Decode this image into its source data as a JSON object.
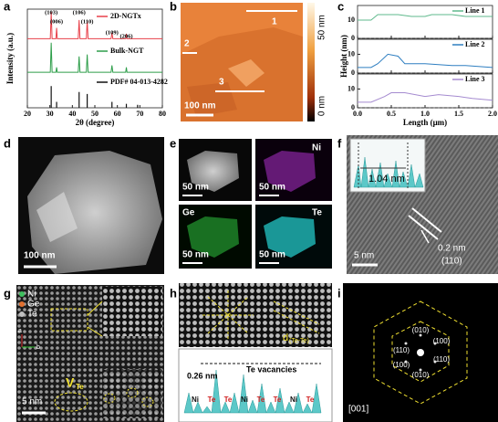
{
  "chart_data": [
    {
      "type": "line",
      "x_label": "2θ (degree)",
      "y_label": "Intensity (a.u.)",
      "xlim": [
        20,
        80
      ],
      "xticks": [
        20,
        30,
        40,
        50,
        60,
        70,
        80
      ],
      "ylim": [
        0,
        100
      ],
      "series": [
        {
          "name": "2D-NGTx",
          "color": "#e8414a",
          "x": [
            20,
            30.2,
            30.6,
            31,
            32.7,
            33,
            33.3,
            42.6,
            43,
            43.4,
            46.2,
            46.6,
            47,
            57.2,
            57.6,
            58,
            63.7,
            64,
            64.3,
            80
          ],
          "values": [
            70,
            70,
            97,
            70,
            70,
            81,
            70,
            70,
            89,
            70,
            70,
            88,
            70,
            70,
            76,
            70,
            70,
            75,
            70,
            70
          ]
        },
        {
          "name": "Bulk-NGT",
          "color": "#2e9e4a",
          "x": [
            20,
            30.2,
            30.6,
            31,
            32.7,
            33,
            33.3,
            42.6,
            43,
            43.4,
            46.2,
            46.6,
            47,
            57.2,
            57.6,
            58,
            63.7,
            64,
            64.3,
            80
          ],
          "values": [
            36,
            36,
            66,
            36,
            36,
            41,
            36,
            36,
            52,
            36,
            36,
            54,
            36,
            36,
            43,
            36,
            36,
            41,
            36,
            36
          ]
        },
        {
          "name": "PDF# 04-013-4282",
          "color": "#111111",
          "kind": "stick",
          "x": [
            30.6,
            33,
            43,
            46.6,
            57.6,
            64,
            69
          ],
          "values": [
            22,
            6,
            16,
            14,
            6,
            4,
            3
          ]
        }
      ],
      "annotations": [
        {
          "text": "(103)",
          "x": 30.6
        },
        {
          "text": "(006)",
          "x": 33
        },
        {
          "text": "(106)",
          "x": 43
        },
        {
          "text": "(110)",
          "x": 46.6
        },
        {
          "text": "(109)",
          "x": 57.6
        },
        {
          "text": "(206)",
          "x": 64
        }
      ]
    },
    {
      "type": "line",
      "xlim": [
        0,
        2
      ],
      "xticks": [
        0,
        0.5,
        1,
        1.5,
        2
      ],
      "ylim": [
        0,
        18
      ],
      "yticks": [
        0,
        10
      ],
      "series": [
        {
          "name": "Line 1",
          "color": "#5fb98c",
          "x": [
            0,
            0.2,
            0.3,
            0.6,
            0.8,
            1.0,
            1.1,
            1.4,
            1.6,
            1.8,
            2.0
          ],
          "values": [
            10,
            10,
            13,
            13,
            12,
            12,
            13,
            13,
            12,
            12,
            12
          ]
        }
      ]
    },
    {
      "type": "line",
      "y_label": "Height (nm)",
      "xlim": [
        0,
        2
      ],
      "xticks": [
        0,
        0.5,
        1,
        1.5,
        2
      ],
      "ylim": [
        0,
        18
      ],
      "yticks": [
        0,
        10
      ],
      "series": [
        {
          "name": "Line 2",
          "color": "#2f7fc1",
          "x": [
            0,
            0.2,
            0.3,
            0.45,
            0.6,
            0.7,
            1.0,
            1.4,
            1.6,
            2.0
          ],
          "values": [
            3,
            3,
            5,
            10,
            9,
            5,
            5,
            4,
            4,
            3
          ]
        }
      ]
    },
    {
      "type": "line",
      "x_label": "Length (μm)",
      "xlim": [
        0,
        2
      ],
      "xticks": [
        {
          "value": 0,
          "label": "0.0"
        },
        0.5,
        {
          "value": 1,
          "label": "1.0"
        },
        1.5,
        {
          "value": 2,
          "label": "2.0"
        }
      ],
      "ylim": [
        0,
        18
      ],
      "yticks": [
        0,
        10
      ],
      "series": [
        {
          "name": "Line 3",
          "color": "#a58bd0",
          "x": [
            0,
            0.2,
            0.4,
            0.5,
            0.7,
            1.0,
            1.2,
            1.5,
            1.7,
            2.0
          ],
          "values": [
            3,
            3,
            6,
            8,
            8,
            6,
            7,
            6,
            5,
            4
          ]
        }
      ]
    }
  ],
  "figure": {
    "panel_labels": [
      "a",
      "b",
      "c",
      "d",
      "e",
      "f",
      "g",
      "h",
      "i"
    ],
    "b": {
      "regions": [
        "1",
        "2",
        "3"
      ],
      "scale_bar": "100 nm",
      "colorbar": [
        "50 nm",
        "0 nm"
      ]
    },
    "d": {
      "scale_bar": "100 nm"
    },
    "e": {
      "elements": [
        "Ni",
        "Ge",
        "Te"
      ],
      "scale_bars": [
        "50 nm",
        "50 nm",
        "50 nm",
        "50 nm"
      ]
    },
    "f": {
      "spacing": "1.04 nm",
      "scale_bar": "5 nm",
      "lattice": "0.2 nm",
      "plane": "(110)"
    },
    "g": {
      "legend": [
        "Ni",
        "Ge",
        "Te"
      ],
      "axes": [
        "a",
        "b"
      ],
      "scale_bar": "5 nm",
      "vacancy": "V",
      "vacancy_sub": "Te"
    },
    "h": {
      "distance_symbol": "d",
      "distance_sub": "(Te-Te)",
      "spacing": "0.26 nm",
      "note": "Te vacancies",
      "atoms": [
        "Ni",
        "Te",
        "Te",
        "Ni",
        "Te",
        "Te",
        "Ni",
        "Te"
      ]
    },
    "i": {
      "spots": [
        "(010)",
        "(100)",
        "(110)",
        "(110)",
        "(100)",
        "(010)"
      ],
      "zone": "[001]"
    }
  }
}
